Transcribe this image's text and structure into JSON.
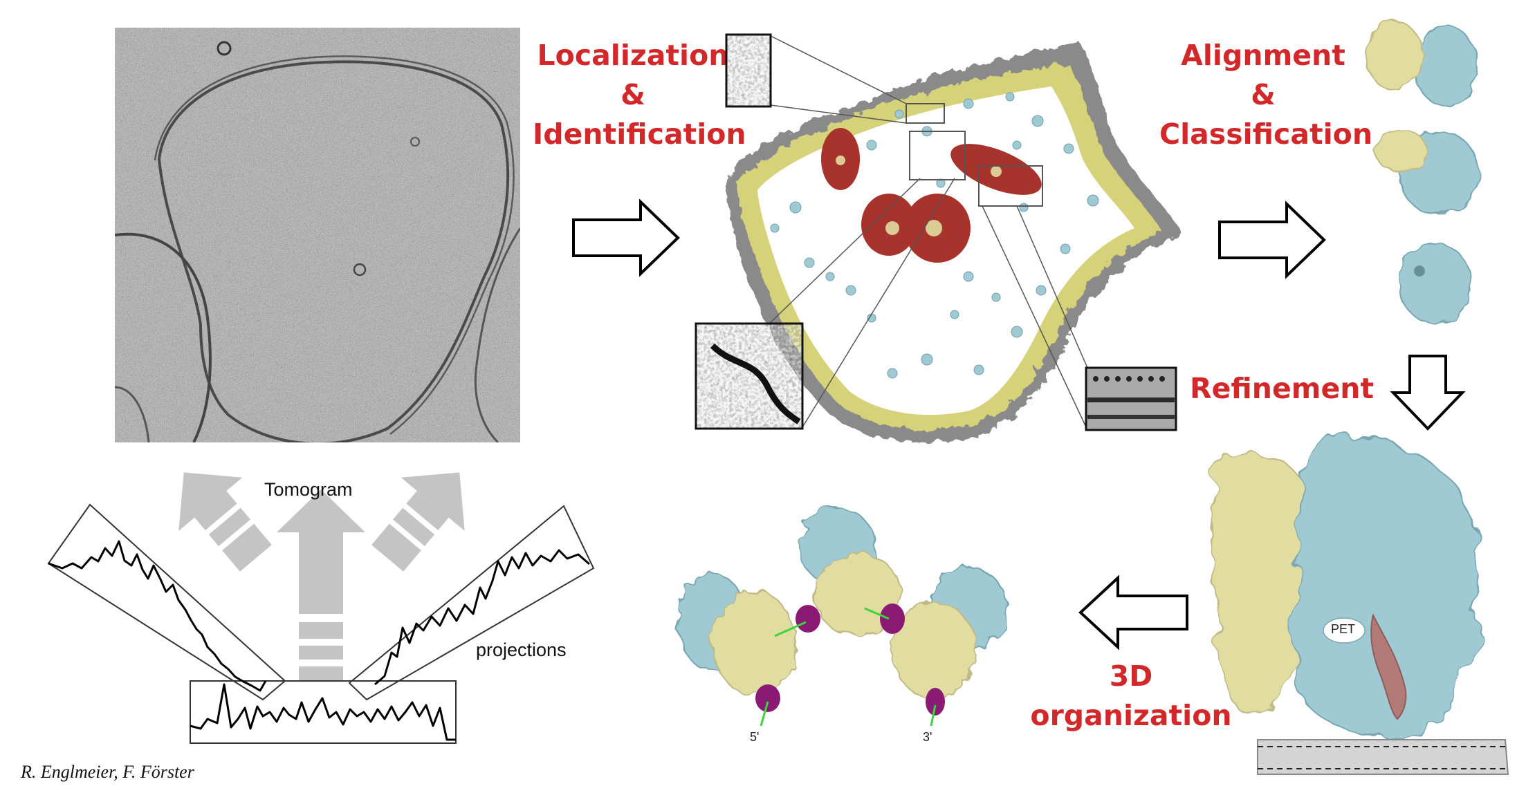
{
  "labels": {
    "localization": [
      "Localization",
      "&",
      "Identification"
    ],
    "alignment": [
      "Alignment",
      "&",
      "Classification"
    ],
    "refinement": "Refinement",
    "organization": [
      "3D",
      "organization"
    ]
  },
  "schematic": {
    "tomogram": "Tomogram",
    "projections": "projections"
  },
  "polysome": {
    "five_prime": "5'",
    "three_prime": "3'"
  },
  "refined_model": {
    "pet": "PET"
  },
  "credit": "R. Englmeier, F. Förster",
  "colors": {
    "label_red": "#d2282a",
    "ribosome_blue": "#9fc9d3",
    "subunit_yellow": "#e1dca0",
    "membrane_gray": "#8a8a8a",
    "cluster_red": "#a8322c",
    "mrna_purple": "#8a1a73",
    "pet_brown": "#b37b77"
  },
  "icons": [
    "arrow-right-icon",
    "arrow-down-icon",
    "arrow-left-icon"
  ]
}
